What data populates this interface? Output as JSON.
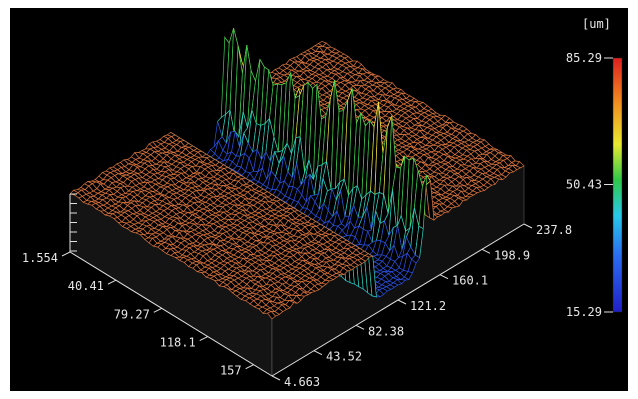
{
  "chart_data": {
    "type": "surface3d",
    "title": "",
    "axis_left": {
      "ticks": [
        "1.554",
        "40.41",
        "79.27",
        "118.1",
        "157"
      ]
    },
    "axis_right": {
      "ticks": [
        "4.663",
        "43.52",
        "82.38",
        "121.2",
        "160.1",
        "198.9",
        "237.8"
      ]
    },
    "colorbar": {
      "unit": "[um]",
      "min": 15.29,
      "mid": 50.43,
      "max": 85.29,
      "labels": [
        "85.29",
        "50.43",
        "15.29"
      ]
    },
    "surface": {
      "plateau_height": 38,
      "trench_height": 17,
      "ridge_peak_height": 85.29,
      "colors": {
        "plateau": "#d8743e",
        "trench": "#2a4fd8",
        "ridge_low": "#2fd0c0",
        "ridge_mid": "#f2e23a",
        "ridge_high": "#e83222"
      }
    }
  }
}
